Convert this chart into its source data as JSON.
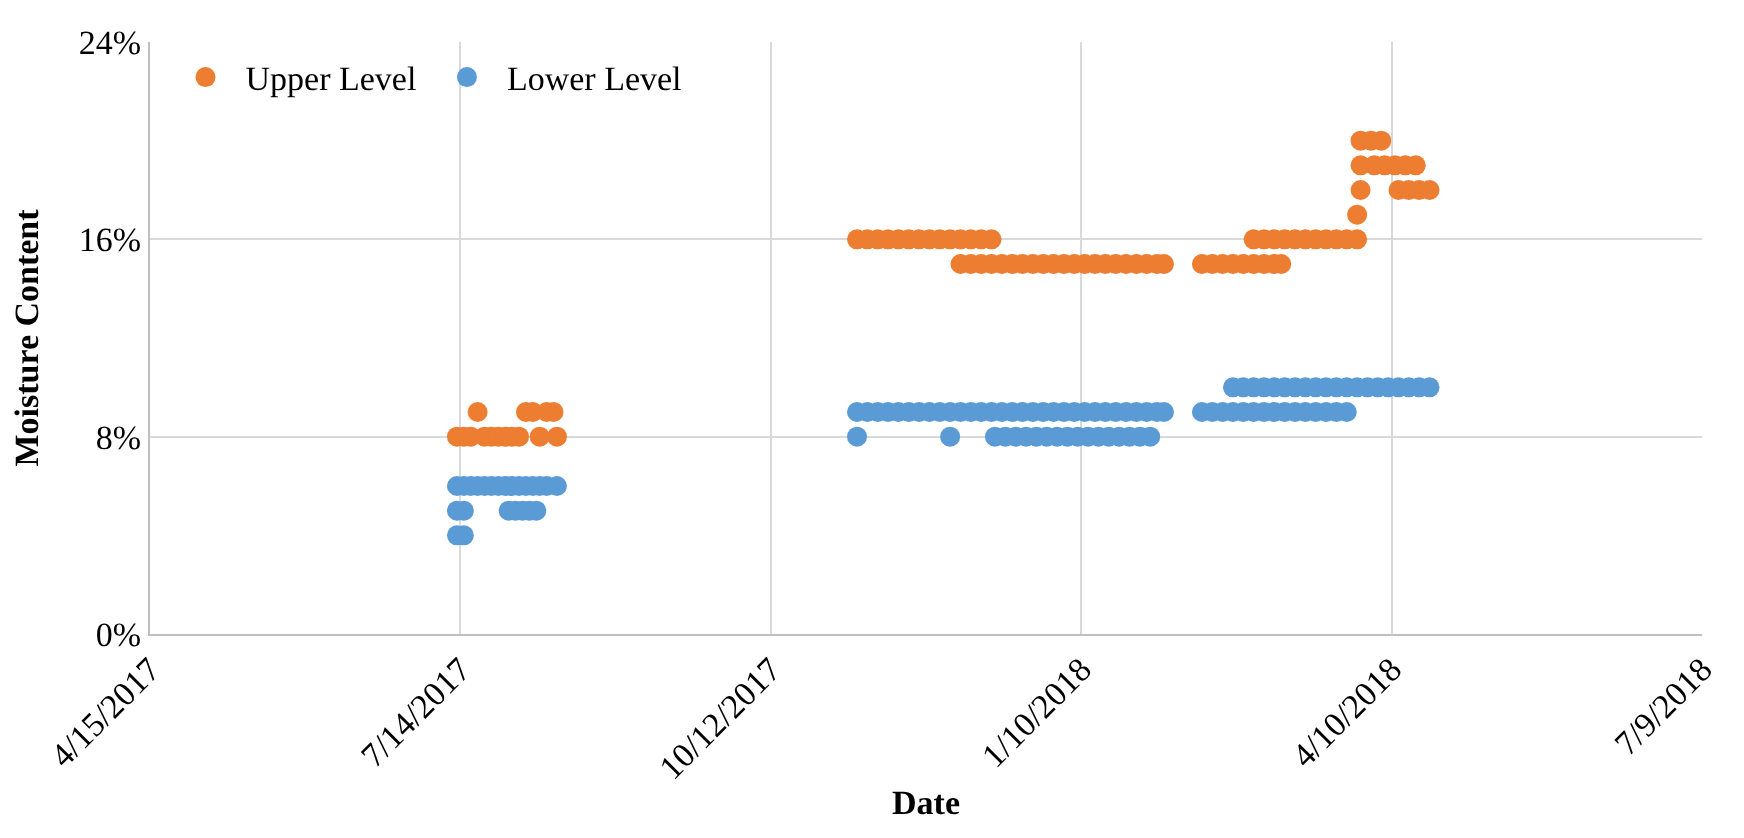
{
  "chart_data": {
    "type": "scatter",
    "xlabel": "Date",
    "ylabel": "Moisture Content",
    "marker": "circle",
    "grid": true,
    "legend": "top left",
    "xlim": [
      "2017-04-15",
      "2018-07-09"
    ],
    "xticks": [
      {
        "value": "2017-04-15",
        "label": "4/15/2017"
      },
      {
        "value": "2017-07-14",
        "label": "7/14/2017"
      },
      {
        "value": "2017-10-12",
        "label": "10/12/2017"
      },
      {
        "value": "2018-01-10",
        "label": "1/10/2018"
      },
      {
        "value": "2018-04-10",
        "label": "4/10/2018"
      },
      {
        "value": "2018-07-09",
        "label": "7/9/2018"
      }
    ],
    "ylim": [
      0,
      24
    ],
    "yticks": [
      {
        "value": 0,
        "label": "0%"
      },
      {
        "value": 8,
        "label": "8%"
      },
      {
        "value": 16,
        "label": "16%"
      },
      {
        "value": 24,
        "label": "24%"
      }
    ],
    "series": [
      {
        "name": "Upper Level",
        "color": "#ed7d31",
        "x": [
          "2017-07-13",
          "2017-07-15",
          "2017-07-17",
          "2017-07-19",
          "2017-07-21",
          "2017-07-23",
          "2017-07-25",
          "2017-07-27",
          "2017-07-29",
          "2017-07-31",
          "2017-08-02",
          "2017-08-04",
          "2017-08-06",
          "2017-08-08",
          "2017-08-10",
          "2017-08-11",
          "2017-11-06",
          "2017-11-09",
          "2017-11-12",
          "2017-11-15",
          "2017-11-18",
          "2017-11-21",
          "2017-11-24",
          "2017-11-27",
          "2017-11-30",
          "2017-12-03",
          "2017-12-06",
          "2017-12-09",
          "2017-12-12",
          "2017-12-15",
          "2017-12-06",
          "2017-12-09",
          "2017-12-12",
          "2017-12-15",
          "2017-12-18",
          "2017-12-21",
          "2017-12-24",
          "2017-12-27",
          "2017-12-30",
          "2018-01-02",
          "2018-01-05",
          "2018-01-08",
          "2018-01-11",
          "2018-01-14",
          "2018-01-17",
          "2018-01-20",
          "2018-01-23",
          "2018-01-26",
          "2018-01-29",
          "2018-02-01",
          "2018-02-03",
          "2018-02-14",
          "2018-02-17",
          "2018-02-20",
          "2018-02-23",
          "2018-02-26",
          "2018-03-01",
          "2018-03-04",
          "2018-03-07",
          "2018-03-09",
          "2018-03-01",
          "2018-03-04",
          "2018-03-07",
          "2018-03-10",
          "2018-03-13",
          "2018-03-16",
          "2018-03-19",
          "2018-03-22",
          "2018-03-25",
          "2018-03-28",
          "2018-03-31",
          "2018-03-31",
          "2018-04-01",
          "2018-04-01",
          "2018-04-05",
          "2018-04-08",
          "2018-04-11",
          "2018-04-14",
          "2018-04-17",
          "2018-04-01",
          "2018-04-04",
          "2018-04-07",
          "2018-04-12",
          "2018-04-15",
          "2018-04-18",
          "2018-04-21"
        ],
        "values": [
          8,
          8,
          8,
          9,
          8,
          8,
          8,
          8,
          8,
          8,
          9,
          9,
          8,
          9,
          9,
          8,
          16,
          16,
          16,
          16,
          16,
          16,
          16,
          16,
          16,
          16,
          16,
          16,
          16,
          16,
          15,
          15,
          15,
          15,
          15,
          15,
          15,
          15,
          15,
          15,
          15,
          15,
          15,
          15,
          15,
          15,
          15,
          15,
          15,
          15,
          15,
          15,
          15,
          15,
          15,
          15,
          15,
          15,
          15,
          15,
          16,
          16,
          16,
          16,
          16,
          16,
          16,
          16,
          16,
          16,
          16,
          17,
          18,
          19,
          19,
          19,
          19,
          19,
          19,
          20,
          20,
          20,
          18,
          18,
          18,
          18
        ]
      },
      {
        "name": "Lower Level",
        "color": "#5b9bd5",
        "x": [
          "2017-07-13",
          "2017-07-15",
          "2017-07-13",
          "2017-07-15",
          "2017-07-13",
          "2017-07-15",
          "2017-07-17",
          "2017-07-19",
          "2017-07-21",
          "2017-07-23",
          "2017-07-25",
          "2017-07-27",
          "2017-07-29",
          "2017-07-31",
          "2017-08-02",
          "2017-08-04",
          "2017-08-06",
          "2017-08-08",
          "2017-08-11",
          "2017-07-28",
          "2017-07-30",
          "2017-08-01",
          "2017-08-03",
          "2017-08-05",
          "2017-11-06",
          "2017-11-09",
          "2017-11-12",
          "2017-11-15",
          "2017-11-18",
          "2017-11-21",
          "2017-11-24",
          "2017-11-27",
          "2017-11-30",
          "2017-12-03",
          "2017-12-06",
          "2017-12-09",
          "2017-12-12",
          "2017-12-15",
          "2017-12-18",
          "2017-12-21",
          "2017-12-24",
          "2017-12-27",
          "2017-12-30",
          "2018-01-02",
          "2018-01-05",
          "2018-01-08",
          "2018-01-11",
          "2018-01-14",
          "2018-01-17",
          "2018-01-20",
          "2018-01-23",
          "2018-01-26",
          "2018-01-29",
          "2018-02-01",
          "2018-02-03",
          "2017-11-06",
          "2017-12-03",
          "2017-12-16",
          "2017-12-19",
          "2017-12-22",
          "2017-12-25",
          "2017-12-28",
          "2017-12-31",
          "2018-01-03",
          "2018-01-06",
          "2018-01-09",
          "2018-01-12",
          "2018-01-15",
          "2018-01-18",
          "2018-01-21",
          "2018-01-24",
          "2018-01-27",
          "2018-01-30",
          "2018-02-14",
          "2018-02-17",
          "2018-02-20",
          "2018-02-23",
          "2018-02-26",
          "2018-03-01",
          "2018-03-04",
          "2018-03-07",
          "2018-03-10",
          "2018-03-13",
          "2018-03-16",
          "2018-03-19",
          "2018-03-22",
          "2018-03-25",
          "2018-03-28",
          "2018-02-23",
          "2018-02-26",
          "2018-03-01",
          "2018-03-04",
          "2018-03-07",
          "2018-03-10",
          "2018-03-13",
          "2018-03-16",
          "2018-03-19",
          "2018-03-22",
          "2018-03-25",
          "2018-03-28",
          "2018-03-31",
          "2018-04-03",
          "2018-04-06",
          "2018-04-09",
          "2018-04-12",
          "2018-04-15",
          "2018-04-18",
          "2018-04-21"
        ],
        "values": [
          4,
          4,
          5,
          5,
          6,
          6,
          6,
          6,
          6,
          6,
          6,
          6,
          6,
          6,
          6,
          6,
          6,
          6,
          6,
          5,
          5,
          5,
          5,
          5,
          9,
          9,
          9,
          9,
          9,
          9,
          9,
          9,
          9,
          9,
          9,
          9,
          9,
          9,
          9,
          9,
          9,
          9,
          9,
          9,
          9,
          9,
          9,
          9,
          9,
          9,
          9,
          9,
          9,
          9,
          9,
          8,
          8,
          8,
          8,
          8,
          8,
          8,
          8,
          8,
          8,
          8,
          8,
          8,
          8,
          8,
          8,
          8,
          8,
          9,
          9,
          9,
          9,
          9,
          9,
          9,
          9,
          9,
          9,
          9,
          9,
          9,
          9,
          9,
          10,
          10,
          10,
          10,
          10,
          10,
          10,
          10,
          10,
          10,
          10,
          10,
          10,
          10,
          10,
          10,
          10,
          10,
          10,
          10
        ]
      }
    ]
  }
}
